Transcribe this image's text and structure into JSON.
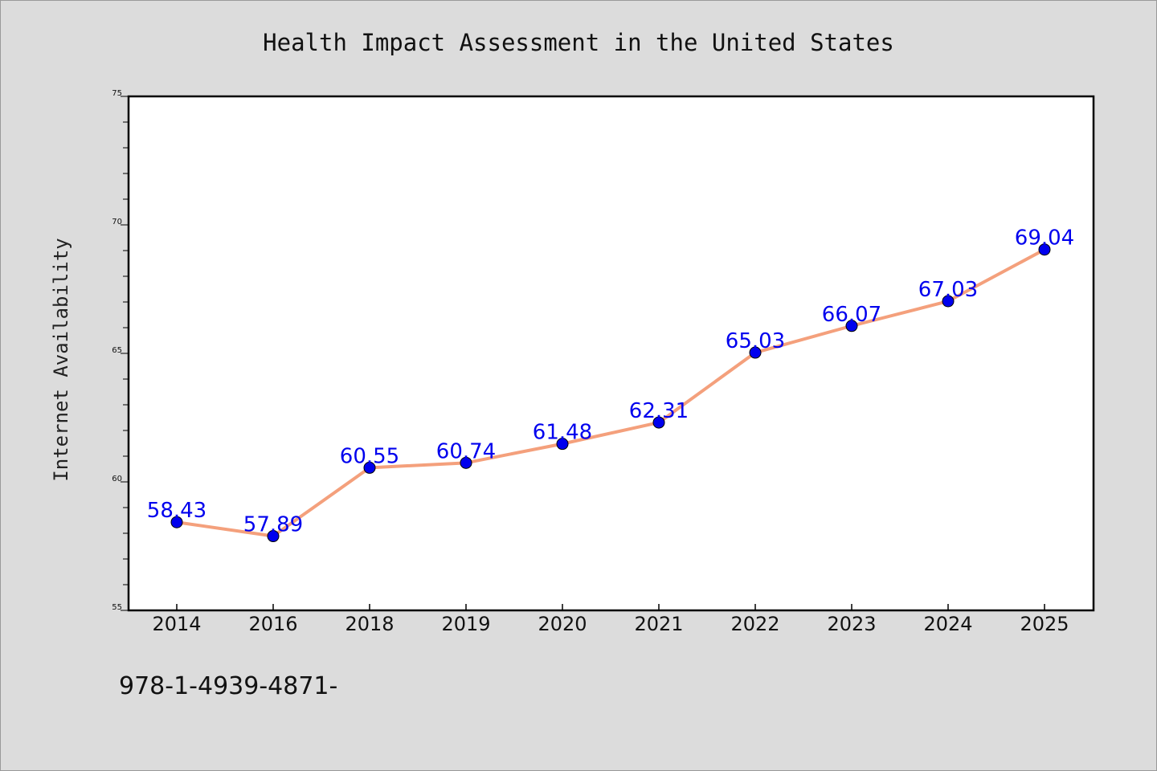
{
  "chart_data": {
    "type": "line",
    "title": "Health Impact Assessment in the United States",
    "xlabel": "",
    "ylabel": "Internet Availability",
    "categories": [
      "2014",
      "2016",
      "2018",
      "2019",
      "2020",
      "2021",
      "2022",
      "2023",
      "2024",
      "2025"
    ],
    "series": [
      {
        "values": [
          58.43,
          57.89,
          60.55,
          60.74,
          61.48,
          62.31,
          65.03,
          66.07,
          67.03,
          69.04
        ],
        "data_labels": [
          "58.43",
          "57.89",
          "60.55",
          "60.74",
          "61.48",
          "62.31",
          "65.03",
          "66.07",
          "67.03",
          "69.04"
        ]
      }
    ],
    "ylim": [
      55,
      75
    ],
    "yticks": [
      "55",
      "60",
      "65",
      "70",
      "75"
    ],
    "grid": false,
    "legend": "none",
    "colors": {
      "line": "#f4a07c",
      "marker": "#0000ee",
      "label": "#0000ee",
      "plot_bg": "#ffffff",
      "page_bg": "#dcdcdc"
    }
  },
  "footer": {
    "text": "978-1-4939-4871-"
  }
}
